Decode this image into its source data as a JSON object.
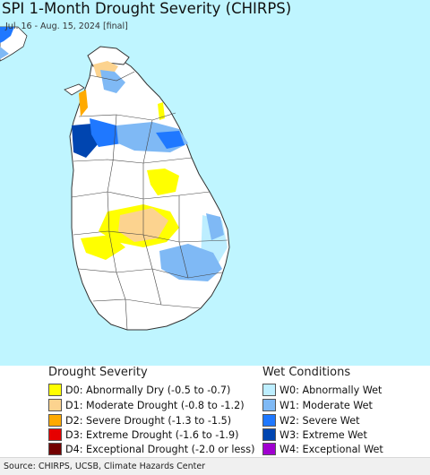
{
  "map": {
    "title": "SPI 1-Month Drought Severity (CHIRPS)",
    "subtitle": "Jul. 16 - Aug. 15, 2024 [final]",
    "water_color": "#bff5ff",
    "land_color": "#ffffff"
  },
  "legend": {
    "drought": {
      "heading": "Drought Severity",
      "items": [
        {
          "label": "D0: Abnormally Dry (-0.5 to -0.7)",
          "color": "#ffff00"
        },
        {
          "label": "D1: Moderate Drought (-0.8 to -1.2)",
          "color": "#fcd38f"
        },
        {
          "label": "D2: Severe Drought (-1.3 to -1.5)",
          "color": "#ffaa00"
        },
        {
          "label": "D3: Extreme Drought (-1.6 to -1.9)",
          "color": "#e60000"
        },
        {
          "label": "D4: Exceptional Drought (-2.0 or less)",
          "color": "#730000"
        }
      ]
    },
    "wet": {
      "heading": "Wet Conditions",
      "items": [
        {
          "label": "W0: Abnormally Wet",
          "color": "#bdeeff"
        },
        {
          "label": "W1: Moderate Wet",
          "color": "#7fb9f5"
        },
        {
          "label": "W2: Severe Wet",
          "color": "#1f78ff"
        },
        {
          "label": "W3: Extreme Wet",
          "color": "#0045b0"
        },
        {
          "label": "W4: Exceptional Wet",
          "color": "#a000d0"
        }
      ]
    }
  },
  "footer": {
    "source": "Source: CHIRPS, UCSB, Climate Hazards Center"
  }
}
